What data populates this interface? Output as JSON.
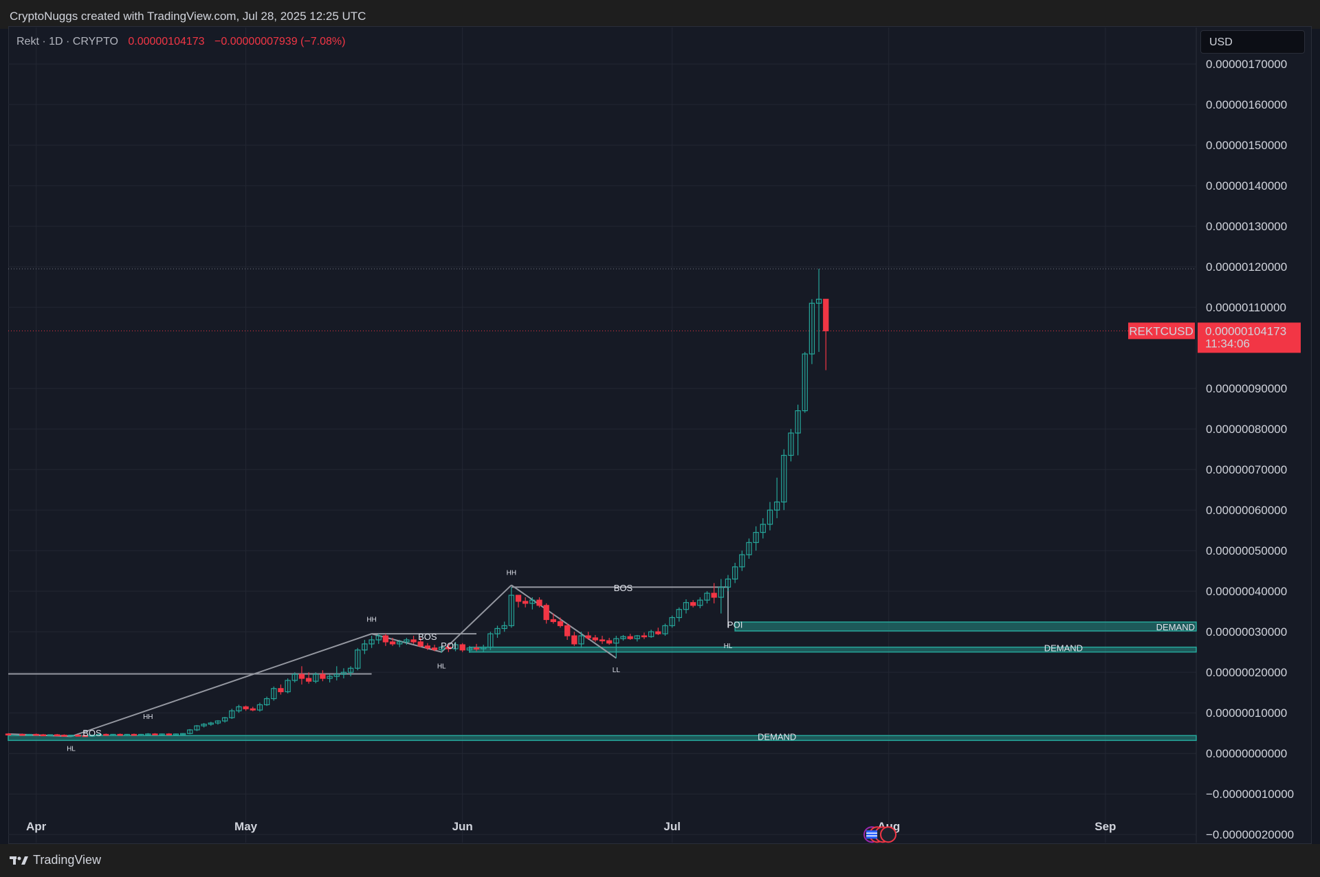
{
  "header": {
    "credit": "CryptoNuggs created with TradingView.com, Jul 28, 2025 12:25 UTC"
  },
  "legend": {
    "symbol": "Rekt · 1D · CRYPTO",
    "price": "0.00000104173",
    "change": "−0.00000007939 (−7.08%)"
  },
  "currency": "USD",
  "footer": {
    "brand": "TradingView"
  },
  "colors": {
    "up": "#26a69a",
    "down": "#f23645",
    "background": "#161a25",
    "grid": "#232733",
    "zone": "#26a69a",
    "structure_line": "#9598a1"
  },
  "icons": [
    "tradingview-logo-icon",
    "event-flag-icon"
  ],
  "chart_data": {
    "type": "candlestick",
    "symbol": "REKTCUSD",
    "timeframe": "1D",
    "y_axis": {
      "ticks": [
        "0.00000170000",
        "0.00000160000",
        "0.00000150000",
        "0.00000140000",
        "0.00000130000",
        "0.00000120000",
        "0.00000110000",
        "0.00000090000",
        "0.00000080000",
        "0.00000070000",
        "0.00000060000",
        "0.00000050000",
        "0.00000040000",
        "0.00000030000",
        "0.00000020000",
        "0.00000010000",
        "0.00000000000",
        "−0.00000010000",
        "−0.00000020000"
      ],
      "tick_values": [
        1.7,
        1.6,
        1.5,
        1.4,
        1.3,
        1.2,
        1.1,
        0.9,
        0.8,
        0.7,
        0.6,
        0.5,
        0.4,
        0.3,
        0.2,
        0.1,
        0.0,
        -0.1,
        -0.2
      ],
      "unit_note": "values in 1e-6 USD",
      "range": [
        -0.22,
        1.79
      ]
    },
    "x_axis": {
      "labels": [
        "Apr",
        "May",
        "Jun",
        "Jul",
        "Aug",
        "Sep"
      ],
      "label_days": [
        1,
        31,
        62,
        92,
        123,
        154
      ],
      "range_days": [
        -3,
        167
      ]
    },
    "current_price": {
      "label": "REKTCUSD",
      "value": "0.00000104173",
      "countdown": "11:34:06",
      "y": 1.042
    },
    "high_marker_y": 1.195,
    "candles_keys": [
      "d",
      "o",
      "h",
      "l",
      "c"
    ],
    "candles": [
      [
        -3,
        0.048,
        0.05,
        0.046,
        0.047
      ],
      [
        -1,
        0.047,
        0.049,
        0.045,
        0.046
      ],
      [
        0,
        0.046,
        0.048,
        0.044,
        0.047
      ],
      [
        1,
        0.047,
        0.049,
        0.045,
        0.046
      ],
      [
        2,
        0.046,
        0.048,
        0.044,
        0.045
      ],
      [
        3,
        0.045,
        0.047,
        0.043,
        0.046
      ],
      [
        4,
        0.046,
        0.048,
        0.044,
        0.045
      ],
      [
        5,
        0.045,
        0.047,
        0.043,
        0.044
      ],
      [
        6,
        0.044,
        0.046,
        0.042,
        0.045
      ],
      [
        7,
        0.045,
        0.047,
        0.043,
        0.044
      ],
      [
        8,
        0.044,
        0.046,
        0.042,
        0.043
      ],
      [
        9,
        0.043,
        0.047,
        0.041,
        0.045
      ],
      [
        10,
        0.045,
        0.048,
        0.043,
        0.047
      ],
      [
        11,
        0.047,
        0.049,
        0.045,
        0.046
      ],
      [
        12,
        0.046,
        0.048,
        0.044,
        0.047
      ],
      [
        13,
        0.047,
        0.049,
        0.045,
        0.046
      ],
      [
        14,
        0.046,
        0.048,
        0.044,
        0.047
      ],
      [
        15,
        0.047,
        0.049,
        0.045,
        0.046
      ],
      [
        16,
        0.046,
        0.048,
        0.044,
        0.047
      ],
      [
        17,
        0.047,
        0.05,
        0.045,
        0.048
      ],
      [
        18,
        0.048,
        0.05,
        0.046,
        0.047
      ],
      [
        19,
        0.047,
        0.049,
        0.045,
        0.048
      ],
      [
        20,
        0.048,
        0.05,
        0.046,
        0.047
      ],
      [
        21,
        0.047,
        0.049,
        0.045,
        0.048
      ],
      [
        22,
        0.048,
        0.05,
        0.046,
        0.049
      ],
      [
        23,
        0.049,
        0.06,
        0.047,
        0.058
      ],
      [
        24,
        0.058,
        0.07,
        0.055,
        0.068
      ],
      [
        25,
        0.068,
        0.075,
        0.064,
        0.072
      ],
      [
        26,
        0.072,
        0.078,
        0.068,
        0.075
      ],
      [
        27,
        0.075,
        0.082,
        0.071,
        0.08
      ],
      [
        28,
        0.08,
        0.09,
        0.076,
        0.088
      ],
      [
        29,
        0.088,
        0.11,
        0.085,
        0.105
      ],
      [
        30,
        0.105,
        0.12,
        0.1,
        0.115
      ],
      [
        31,
        0.115,
        0.118,
        0.105,
        0.11
      ],
      [
        32,
        0.11,
        0.115,
        0.104,
        0.107
      ],
      [
        33,
        0.107,
        0.125,
        0.103,
        0.12
      ],
      [
        34,
        0.12,
        0.14,
        0.117,
        0.135
      ],
      [
        35,
        0.135,
        0.165,
        0.13,
        0.16
      ],
      [
        36,
        0.16,
        0.17,
        0.145,
        0.152
      ],
      [
        37,
        0.152,
        0.185,
        0.148,
        0.18
      ],
      [
        38,
        0.18,
        0.2,
        0.175,
        0.195
      ],
      [
        39,
        0.195,
        0.215,
        0.17,
        0.185
      ],
      [
        40,
        0.185,
        0.2,
        0.172,
        0.178
      ],
      [
        41,
        0.178,
        0.2,
        0.173,
        0.195
      ],
      [
        42,
        0.195,
        0.205,
        0.178,
        0.185
      ],
      [
        43,
        0.185,
        0.195,
        0.175,
        0.19
      ],
      [
        44,
        0.19,
        0.215,
        0.18,
        0.195
      ],
      [
        45,
        0.195,
        0.21,
        0.185,
        0.2
      ],
      [
        46,
        0.2,
        0.215,
        0.19,
        0.21
      ],
      [
        47,
        0.21,
        0.26,
        0.205,
        0.255
      ],
      [
        48,
        0.255,
        0.28,
        0.245,
        0.27
      ],
      [
        49,
        0.27,
        0.29,
        0.26,
        0.28
      ],
      [
        50,
        0.28,
        0.295,
        0.27,
        0.29
      ],
      [
        51,
        0.29,
        0.295,
        0.265,
        0.275
      ],
      [
        52,
        0.275,
        0.285,
        0.265,
        0.27
      ],
      [
        53,
        0.27,
        0.28,
        0.262,
        0.275
      ],
      [
        54,
        0.275,
        0.285,
        0.268,
        0.28
      ],
      [
        55,
        0.28,
        0.29,
        0.27,
        0.275
      ],
      [
        56,
        0.275,
        0.285,
        0.262,
        0.265
      ],
      [
        57,
        0.265,
        0.272,
        0.255,
        0.26
      ],
      [
        58,
        0.26,
        0.268,
        0.252,
        0.256
      ],
      [
        59,
        0.256,
        0.265,
        0.248,
        0.262
      ],
      [
        60,
        0.262,
        0.27,
        0.25,
        0.258
      ],
      [
        61,
        0.258,
        0.275,
        0.252,
        0.268
      ],
      [
        62,
        0.268,
        0.272,
        0.25,
        0.255
      ],
      [
        63,
        0.255,
        0.265,
        0.248,
        0.26
      ],
      [
        64,
        0.26,
        0.27,
        0.252,
        0.258
      ],
      [
        65,
        0.258,
        0.268,
        0.25,
        0.262
      ],
      [
        66,
        0.262,
        0.3,
        0.255,
        0.295
      ],
      [
        67,
        0.295,
        0.315,
        0.285,
        0.308
      ],
      [
        68,
        0.308,
        0.325,
        0.3,
        0.315
      ],
      [
        69,
        0.315,
        0.41,
        0.31,
        0.39
      ],
      [
        70,
        0.39,
        0.39,
        0.36,
        0.375
      ],
      [
        71,
        0.375,
        0.385,
        0.36,
        0.37
      ],
      [
        72,
        0.37,
        0.385,
        0.355,
        0.378
      ],
      [
        73,
        0.378,
        0.385,
        0.36,
        0.365
      ],
      [
        74,
        0.365,
        0.37,
        0.32,
        0.33
      ],
      [
        75,
        0.33,
        0.345,
        0.32,
        0.325
      ],
      [
        76,
        0.325,
        0.335,
        0.31,
        0.315
      ],
      [
        77,
        0.315,
        0.32,
        0.28,
        0.29
      ],
      [
        78,
        0.29,
        0.3,
        0.265,
        0.27
      ],
      [
        79,
        0.27,
        0.3,
        0.26,
        0.29
      ],
      [
        80,
        0.29,
        0.3,
        0.28,
        0.285
      ],
      [
        81,
        0.285,
        0.292,
        0.275,
        0.28
      ],
      [
        82,
        0.28,
        0.29,
        0.27,
        0.278
      ],
      [
        83,
        0.278,
        0.285,
        0.268,
        0.272
      ],
      [
        84,
        0.272,
        0.29,
        0.235,
        0.283
      ],
      [
        85,
        0.283,
        0.292,
        0.278,
        0.288
      ],
      [
        86,
        0.288,
        0.295,
        0.28,
        0.283
      ],
      [
        87,
        0.283,
        0.292,
        0.276,
        0.29
      ],
      [
        88,
        0.29,
        0.298,
        0.282,
        0.288
      ],
      [
        89,
        0.288,
        0.305,
        0.285,
        0.3
      ],
      [
        90,
        0.3,
        0.31,
        0.292,
        0.295
      ],
      [
        91,
        0.295,
        0.32,
        0.29,
        0.315
      ],
      [
        92,
        0.315,
        0.34,
        0.31,
        0.335
      ],
      [
        93,
        0.335,
        0.36,
        0.325,
        0.355
      ],
      [
        94,
        0.355,
        0.38,
        0.345,
        0.372
      ],
      [
        95,
        0.372,
        0.378,
        0.36,
        0.365
      ],
      [
        96,
        0.365,
        0.385,
        0.358,
        0.378
      ],
      [
        97,
        0.378,
        0.4,
        0.37,
        0.395
      ],
      [
        98,
        0.395,
        0.42,
        0.37,
        0.385
      ],
      [
        99,
        0.385,
        0.43,
        0.345,
        0.41
      ],
      [
        100,
        0.41,
        0.44,
        0.4,
        0.43
      ],
      [
        101,
        0.43,
        0.47,
        0.42,
        0.46
      ],
      [
        102,
        0.46,
        0.5,
        0.45,
        0.49
      ],
      [
        103,
        0.49,
        0.53,
        0.48,
        0.52
      ],
      [
        104,
        0.52,
        0.56,
        0.5,
        0.545
      ],
      [
        105,
        0.545,
        0.58,
        0.53,
        0.565
      ],
      [
        106,
        0.565,
        0.62,
        0.55,
        0.6
      ],
      [
        107,
        0.6,
        0.68,
        0.58,
        0.62
      ],
      [
        108,
        0.62,
        0.75,
        0.6,
        0.735
      ],
      [
        109,
        0.735,
        0.8,
        0.72,
        0.79
      ],
      [
        110,
        0.79,
        0.86,
        0.735,
        0.845
      ],
      [
        111,
        0.845,
        0.99,
        0.84,
        0.985
      ],
      [
        112,
        0.985,
        1.12,
        0.96,
        1.11
      ],
      [
        113,
        1.11,
        1.195,
        0.99,
        1.12
      ],
      [
        114,
        1.12,
        1.12,
        0.945,
        1.042
      ]
    ],
    "annotations": [
      {
        "text": "BOS",
        "kind": "structure",
        "x": 9,
        "y": 0.043
      },
      {
        "text": "HL",
        "kind": "swing",
        "x": 6,
        "y": 0.006
      },
      {
        "text": "HH",
        "kind": "swing",
        "x": 17,
        "y": 0.085
      },
      {
        "text": "HH",
        "kind": "swing",
        "x": 49,
        "y": 0.325
      },
      {
        "text": "BOS",
        "kind": "structure",
        "x": 57,
        "y": 0.28
      },
      {
        "text": "POI",
        "kind": "zone",
        "x": 60,
        "y": 0.258
      },
      {
        "text": "HL",
        "kind": "swing",
        "x": 59,
        "y": 0.21
      },
      {
        "text": "HH",
        "kind": "swing",
        "x": 69,
        "y": 0.44
      },
      {
        "text": "BOS",
        "kind": "structure",
        "x": 85,
        "y": 0.4
      },
      {
        "text": "LL",
        "kind": "swing",
        "x": 84,
        "y": 0.2
      },
      {
        "text": "POI",
        "kind": "zone",
        "x": 101,
        "y": 0.31
      },
      {
        "text": "HL",
        "kind": "swing",
        "x": 100,
        "y": 0.26
      }
    ],
    "zones": [
      {
        "label": "DEMAND",
        "from_day": -3,
        "y_low": 0.032,
        "y_high": 0.044
      },
      {
        "label": "DEMAND",
        "from_day": 63,
        "y_low": 0.25,
        "y_high": 0.262
      },
      {
        "label": "DEMAND",
        "from_day": 101,
        "y_low": 0.302,
        "y_high": 0.324
      }
    ],
    "structure_lines": [
      {
        "x1": -3,
        "y1": 0.196,
        "x2": 49,
        "y2": 0.196
      },
      {
        "x1": -3,
        "y1": 0.048,
        "x2": 6,
        "y2": 0.042
      },
      {
        "x1": 6,
        "y1": 0.042,
        "x2": 49,
        "y2": 0.295
      },
      {
        "x1": 49,
        "y1": 0.295,
        "x2": 59,
        "y2": 0.25
      },
      {
        "x1": 49,
        "y1": 0.295,
        "x2": 64,
        "y2": 0.295
      },
      {
        "x1": 59,
        "y1": 0.25,
        "x2": 69,
        "y2": 0.415
      },
      {
        "x1": 69,
        "y1": 0.415,
        "x2": 84,
        "y2": 0.235
      },
      {
        "x1": 69,
        "y1": 0.41,
        "x2": 100,
        "y2": 0.41
      },
      {
        "x1": 100,
        "y1": 0.41,
        "x2": 100,
        "y2": 0.31
      }
    ]
  }
}
